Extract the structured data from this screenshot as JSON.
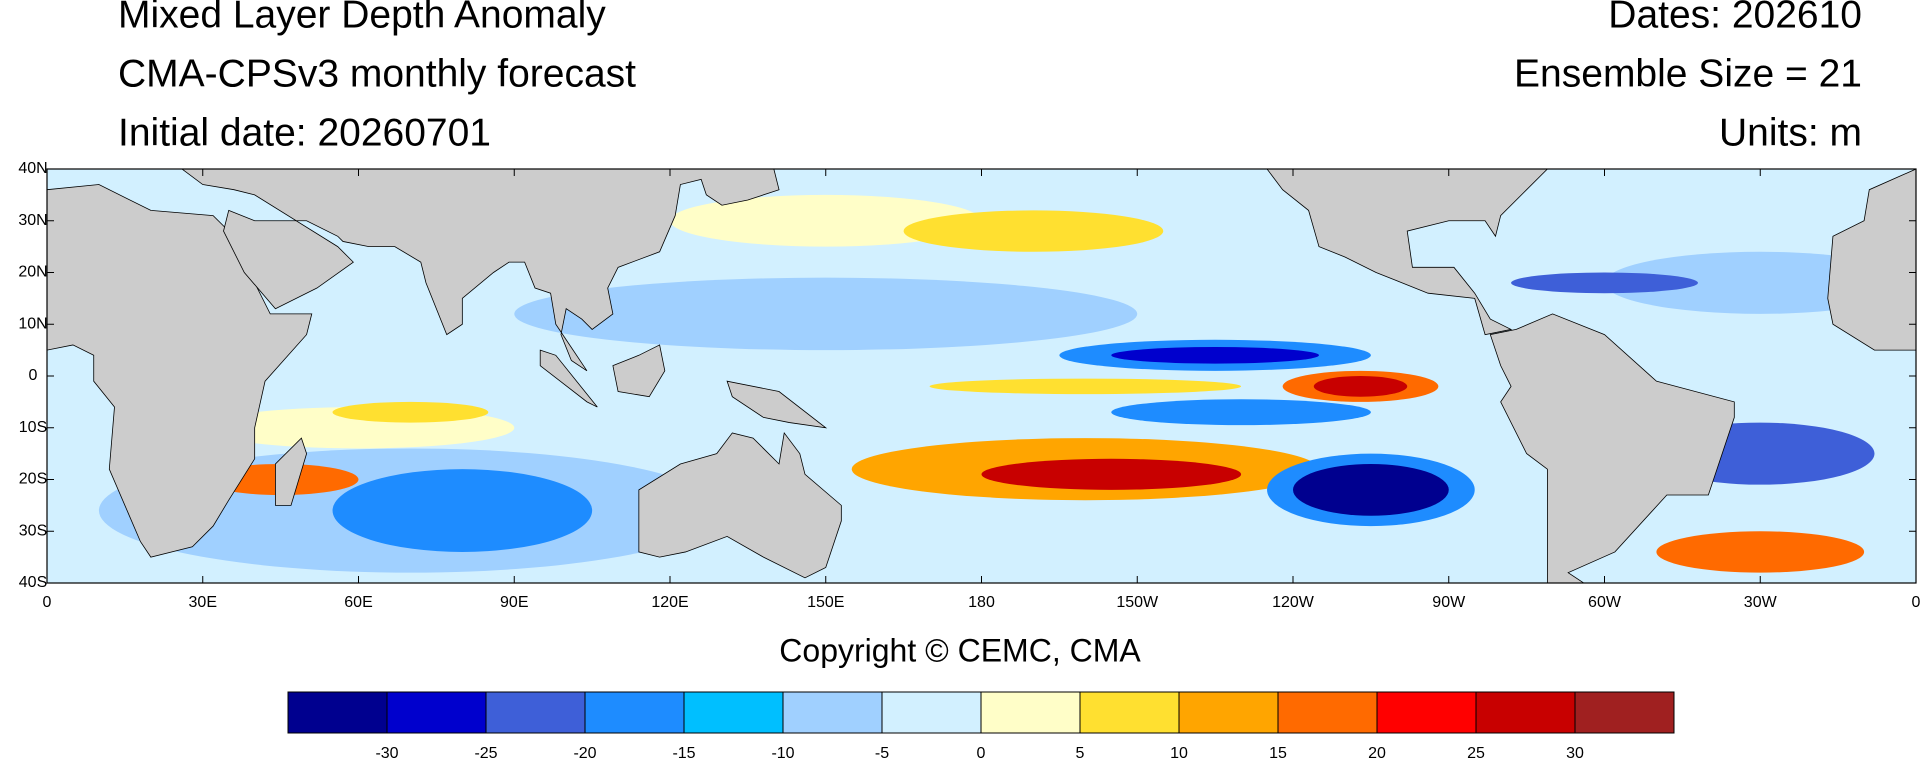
{
  "header": {
    "title": "Mixed Layer Depth Anomaly",
    "subtitle": "CMA-CPSv3 monthly forecast",
    "initial_date": "Initial date: 20260701",
    "dates": "Dates: 202610",
    "ensemble": "Ensemble Size = 21",
    "units": "Units: m"
  },
  "map": {
    "lon_labels": [
      "0",
      "30E",
      "60E",
      "90E",
      "120E",
      "150E",
      "180",
      "150W",
      "120W",
      "90W",
      "60W",
      "30W",
      "0"
    ],
    "lat_labels": [
      "40N",
      "30N",
      "20N",
      "10N",
      "0",
      "10S",
      "20S",
      "30S",
      "40S"
    ]
  },
  "footer": {
    "copyright": "Copyright © CEMC, CMA"
  },
  "colorbar": {
    "ticks": [
      -30,
      -25,
      -20,
      -15,
      -10,
      -5,
      0,
      5,
      10,
      15,
      20,
      25,
      30
    ],
    "colors": [
      "#00008f",
      "#0000cd",
      "#3e5fd8",
      "#1e8cff",
      "#00bfff",
      "#a0d0ff",
      "#d2f0ff",
      "#fffec8",
      "#ffe030",
      "#ffa500",
      "#ff6a00",
      "#ff0000",
      "#c80000",
      "#a02020"
    ]
  }
}
